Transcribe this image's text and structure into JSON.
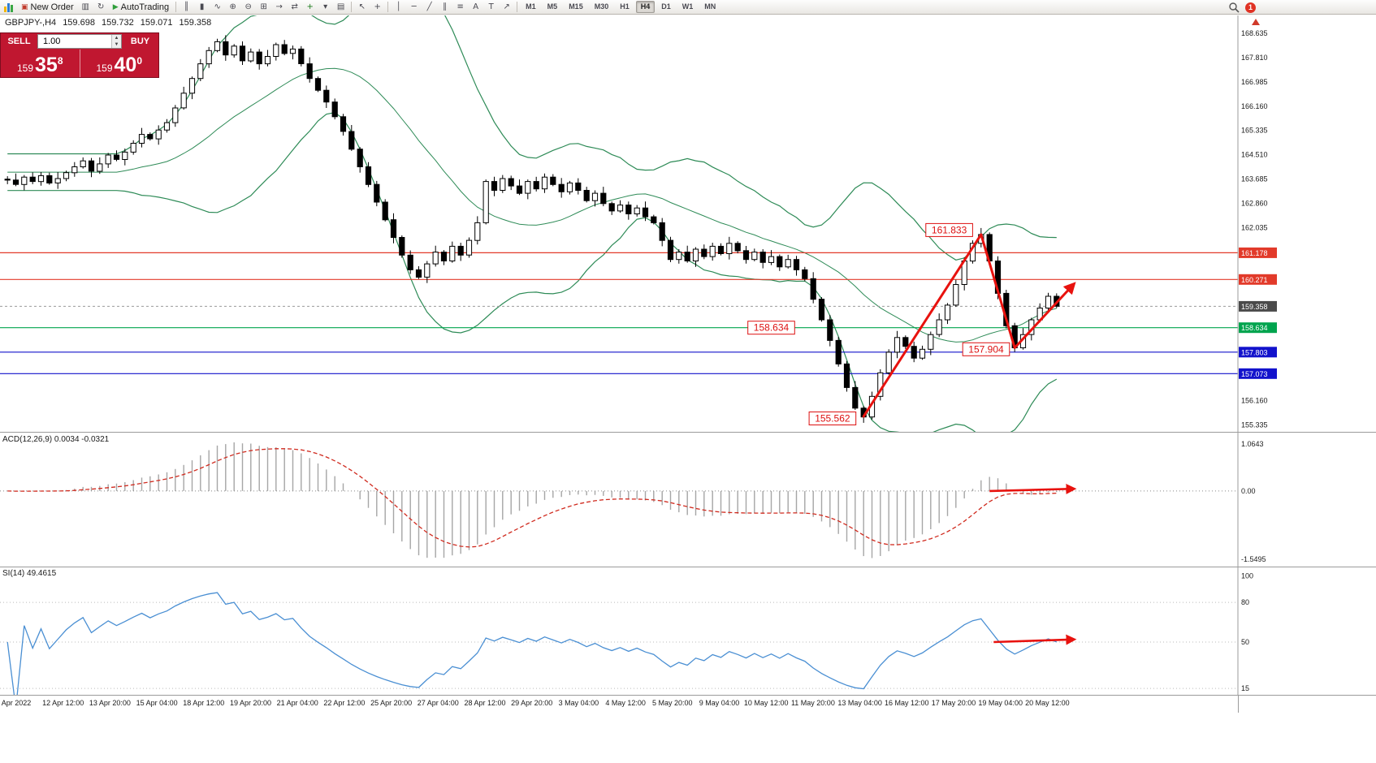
{
  "toolbar": {
    "timeframes": [
      "M1",
      "M5",
      "M15",
      "M30",
      "H1",
      "H4",
      "D1",
      "W1",
      "MN"
    ],
    "active_timeframe": "H4",
    "notification_count": "1",
    "items": [
      {
        "t": "logo",
        "name": "mt4-logo-icon"
      },
      {
        "t": "btn",
        "name": "new-order-button",
        "glyph": "▣",
        "glyph_color": "#c0392b",
        "label": "New Order"
      },
      {
        "t": "icon",
        "name": "profiles-icon",
        "g": "▥"
      },
      {
        "t": "icon",
        "name": "refresh-icon",
        "g": "↻"
      },
      {
        "t": "btn",
        "name": "autotrading-button",
        "glyph": "▶",
        "glyph_color": "#2e9e3a",
        "label": "AutoTrading"
      },
      {
        "t": "sep"
      },
      {
        "t": "icon",
        "name": "bar-chart-icon",
        "g": "║"
      },
      {
        "t": "icon",
        "name": "candlestick-chart-icon",
        "g": "▮"
      },
      {
        "t": "icon",
        "name": "line-chart-icon",
        "g": "∿"
      },
      {
        "t": "icon",
        "name": "zoom-in-icon",
        "g": "⊕"
      },
      {
        "t": "icon",
        "name": "zoom-out-icon",
        "g": "⊖"
      },
      {
        "t": "icon",
        "name": "tile-windows-icon",
        "g": "⊞"
      },
      {
        "t": "icon",
        "name": "auto-scroll-icon",
        "g": "→"
      },
      {
        "t": "icon",
        "name": "chart-shift-icon",
        "g": "⇄"
      },
      {
        "t": "icon",
        "name": "indicators-icon",
        "g": "+",
        "color": "#1c7c1c"
      },
      {
        "t": "icon",
        "name": "periods-dropdown-icon",
        "g": "▾"
      },
      {
        "t": "icon",
        "name": "templates-icon",
        "g": "▤"
      },
      {
        "t": "sep"
      },
      {
        "t": "icon",
        "name": "cursor-icon",
        "g": "↖"
      },
      {
        "t": "icon",
        "name": "crosshair-icon",
        "g": "+"
      },
      {
        "t": "sep"
      },
      {
        "t": "icon",
        "name": "vertical-line-icon",
        "g": "│"
      },
      {
        "t": "icon",
        "name": "horizontal-line-icon",
        "g": "─"
      },
      {
        "t": "icon",
        "name": "trendline-icon",
        "g": "╱"
      },
      {
        "t": "icon",
        "name": "channel-icon",
        "g": "∥"
      },
      {
        "t": "icon",
        "name": "fibonacci-icon",
        "g": "≡"
      },
      {
        "t": "icon",
        "name": "text-icon",
        "g": "A"
      },
      {
        "t": "icon",
        "name": "label-icon",
        "g": "T"
      },
      {
        "t": "icon",
        "name": "arrows-tool-icon",
        "g": "↗"
      },
      {
        "t": "sep"
      },
      {
        "t": "tf"
      }
    ]
  },
  "symbol_header": {
    "symbol": "GBPJPY-,H4",
    "open": "159.698",
    "high": "159.732",
    "low": "159.071",
    "close": "159.358"
  },
  "trade_panel": {
    "sell_label": "SELL",
    "buy_label": "BUY",
    "volume": "1.00",
    "sell_price_prefix": "159",
    "sell_price_big": "35",
    "sell_price_sup": "8",
    "buy_price_prefix": "159",
    "buy_price_big": "40",
    "buy_price_sup": "0"
  },
  "colors": {
    "band": "#2e8b57",
    "level_red": "#e23a2a",
    "level_green": "#00a44e",
    "level_blue": "#1212cc",
    "bid_badge": "#4a4a4a",
    "annotation": "#dd1111",
    "arrow": "#e8120e",
    "macd_hist": "#a6a6a6",
    "macd_signal": "#d02a1e",
    "rsi_line": "#4a8fd3",
    "candle_up": "#ffffff",
    "candle_down": "#000000",
    "trade_red": "#c01730"
  },
  "chart_data": {
    "type": "candlestick",
    "symbol": "GBPJPY-",
    "timeframe": "H4",
    "closes": [
      163.65,
      163.5,
      163.75,
      163.6,
      163.8,
      163.55,
      163.7,
      163.9,
      164.1,
      164.3,
      163.95,
      164.2,
      164.5,
      164.35,
      164.6,
      164.9,
      165.2,
      165.05,
      165.35,
      165.6,
      166.1,
      166.6,
      167.1,
      167.6,
      168.05,
      168.35,
      167.9,
      168.2,
      167.7,
      168.0,
      167.6,
      167.85,
      168.25,
      167.95,
      168.1,
      167.6,
      167.1,
      166.7,
      166.3,
      165.8,
      165.3,
      164.7,
      164.1,
      163.5,
      162.9,
      162.3,
      161.7,
      161.1,
      160.6,
      160.35,
      160.8,
      161.2,
      160.9,
      161.4,
      161.1,
      161.6,
      162.2,
      163.6,
      163.3,
      163.7,
      163.45,
      163.2,
      163.6,
      163.35,
      163.75,
      163.5,
      163.25,
      163.55,
      163.3,
      162.95,
      163.2,
      162.85,
      162.6,
      162.8,
      162.5,
      162.7,
      162.4,
      162.2,
      161.6,
      160.95,
      161.2,
      160.9,
      161.3,
      161.05,
      161.4,
      161.15,
      161.5,
      161.25,
      160.95,
      161.2,
      160.85,
      161.05,
      160.7,
      160.95,
      160.6,
      160.3,
      159.6,
      158.9,
      158.2,
      157.4,
      156.6,
      155.9,
      155.6,
      156.3,
      157.1,
      157.8,
      158.3,
      158.0,
      157.6,
      157.9,
      158.4,
      158.9,
      159.4,
      160.1,
      160.9,
      161.5,
      161.8,
      160.9,
      159.8,
      158.7,
      157.95,
      158.4,
      158.9,
      159.3,
      159.7,
      159.36
    ],
    "wick_up": [
      0.1,
      0.22,
      0.07,
      0.16,
      0.12
    ],
    "wick_down": [
      0.14,
      0.06,
      0.2,
      0.09
    ],
    "price_axis_ticks": [
      "168.635",
      "167.810",
      "166.985",
      "166.160",
      "165.335",
      "164.510",
      "163.685",
      "162.860",
      "162.035",
      "156.160",
      "155.335"
    ],
    "levels": [
      {
        "price": 161.178,
        "label": "161.178",
        "color": "#e23a2a"
      },
      {
        "price": 160.271,
        "label": "160.271",
        "color": "#e23a2a"
      },
      {
        "price": 158.634,
        "label": "158.634",
        "color": "#00a44e"
      },
      {
        "price": 157.803,
        "label": "157.803",
        "color": "#1212cc"
      },
      {
        "price": 157.073,
        "label": "157.073",
        "color": "#1212cc"
      }
    ],
    "bid": {
      "price": 159.358,
      "label": "159.358"
    },
    "indicators": {
      "bollinger_period": 20,
      "bollinger_deviation": 2,
      "macd_fast": 12,
      "macd_slow": 26,
      "macd_signal": 9,
      "rsi_period": 14
    },
    "annotations": [
      {
        "text": "161.833",
        "bar": 112.2,
        "price": 161.95
      },
      {
        "text": "158.634",
        "bar": 91,
        "price": 158.634
      },
      {
        "text": "157.904",
        "bar": 116.6,
        "price": 157.9
      },
      {
        "text": "155.562",
        "bar": 98.3,
        "price": 155.55
      }
    ],
    "trend_arrow": [
      [
        102,
        155.62
      ],
      [
        116,
        161.8
      ],
      [
        120,
        157.95
      ],
      [
        127,
        160.1
      ]
    ],
    "macd_arrow": [
      [
        117,
        0.0
      ],
      [
        127,
        0.05
      ]
    ],
    "rsi_arrow": [
      [
        117.5,
        50
      ],
      [
        127,
        52
      ]
    ],
    "layout": {
      "price_min": 155.15,
      "price_max": 169.05,
      "macd_min": -1.5495,
      "macd_max": 1.0643,
      "rsi_min": 12,
      "rsi_max": 104
    }
  },
  "macd_panel": {
    "label": "ACD(12,26,9) 0.0034 -0.0321",
    "axis_labels": [
      "1.0643",
      "0.00",
      "-1.5495"
    ]
  },
  "rsi_panel": {
    "label": "SI(14) 49.4615",
    "axis_labels": [
      "100",
      "80",
      "50",
      "15"
    ],
    "level_lines": [
      80,
      50,
      15
    ]
  },
  "time_axis": [
    "Apr 2022",
    "12 Apr 12:00",
    "13 Apr 20:00",
    "15 Apr 04:00",
    "18 Apr 12:00",
    "19 Apr 20:00",
    "21 Apr 04:00",
    "22 Apr 12:00",
    "25 Apr 20:00",
    "27 Apr 04:00",
    "28 Apr 12:00",
    "29 Apr 20:00",
    "3 May 04:00",
    "4 May 12:00",
    "5 May 20:00",
    "9 May 04:00",
    "10 May 12:00",
    "11 May 20:00",
    "13 May 04:00",
    "16 May 12:00",
    "17 May 20:00",
    "19 May 04:00",
    "20 May 12:00"
  ]
}
